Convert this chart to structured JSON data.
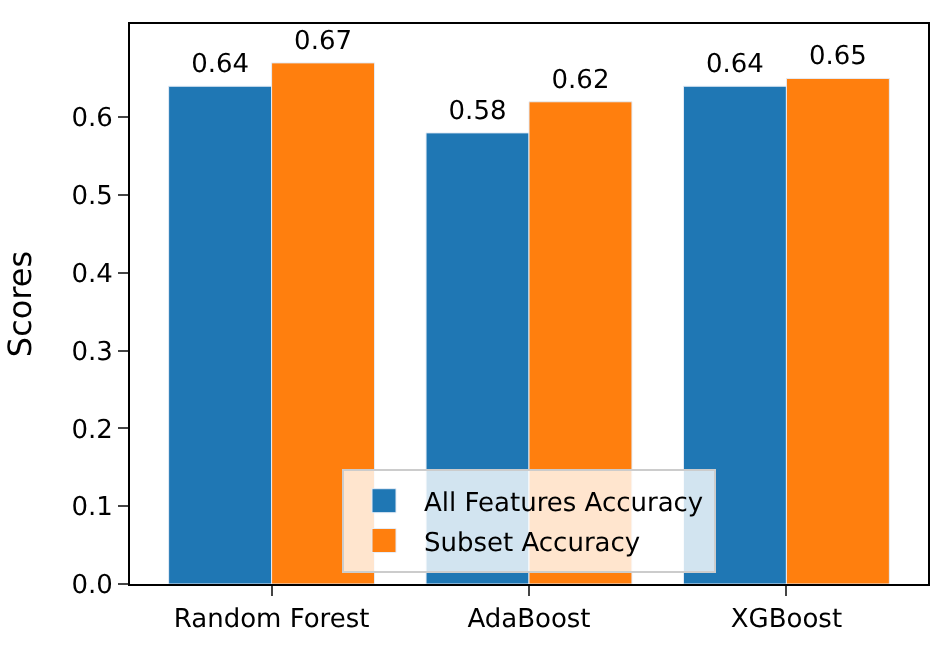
{
  "chart_data": {
    "type": "bar",
    "ylabel": "Scores",
    "categories": [
      "Random Forest",
      "AdaBoost",
      "XGBoost"
    ],
    "series": [
      {
        "name": "All Features Accuracy",
        "color": "#1f77b4",
        "values": [
          0.64,
          0.58,
          0.64
        ]
      },
      {
        "name": "Subset Accuracy",
        "color": "#ff7f0e",
        "values": [
          0.67,
          0.62,
          0.65
        ]
      }
    ],
    "ylim": [
      0,
      0.72
    ],
    "yticks": [
      {
        "value": 0,
        "label": "0.0"
      },
      0.1,
      0.2,
      0.3,
      0.4,
      0.5,
      0.6
    ],
    "data_labels": true,
    "legend": "bottom"
  }
}
